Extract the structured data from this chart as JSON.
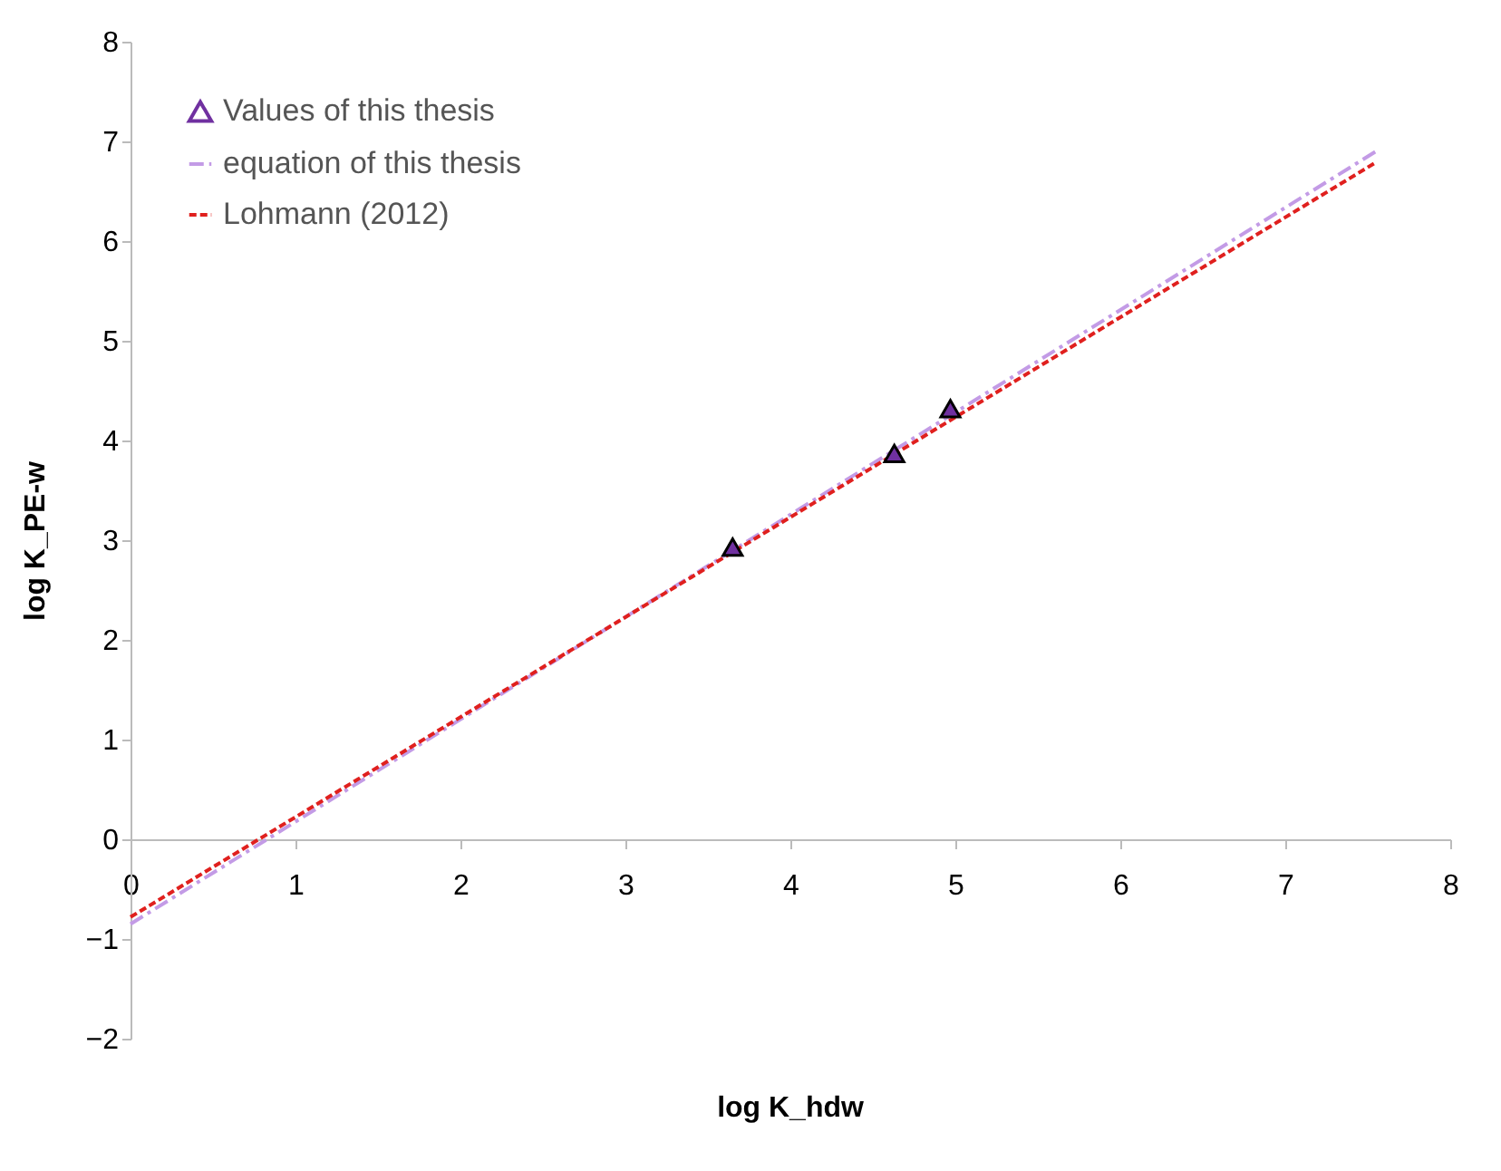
{
  "chart_data": {
    "type": "scatter",
    "xlabel": "log K_hdw",
    "ylabel": "log K_PE-w",
    "xlim": [
      0,
      8
    ],
    "ylim": [
      -2,
      8
    ],
    "xticks": [
      0,
      1,
      2,
      3,
      4,
      5,
      6,
      7,
      8
    ],
    "yticks": [
      -2,
      -1,
      0,
      1,
      2,
      3,
      4,
      5,
      6,
      7,
      8
    ],
    "grid": false,
    "legend": "top left",
    "series": [
      {
        "name": "Values of this thesis",
        "color": "#7030a0",
        "marker": "triangle",
        "x": [
          3.65,
          4.63,
          4.97
        ],
        "values": [
          2.93,
          3.87,
          4.32
        ]
      },
      {
        "name": "equation of this thesis",
        "type": "line",
        "color": "#c39be6",
        "line_style": "dashed",
        "marker": "none",
        "x": [
          0,
          7.55
        ],
        "values": [
          -0.85,
          6.9
        ]
      },
      {
        "name": "Lohmann (2012)",
        "type": "line",
        "color": "#e0201e",
        "line_style": "dotted",
        "marker": "none",
        "x": [
          0,
          7.55
        ],
        "values": [
          -0.78,
          6.79
        ]
      }
    ]
  }
}
